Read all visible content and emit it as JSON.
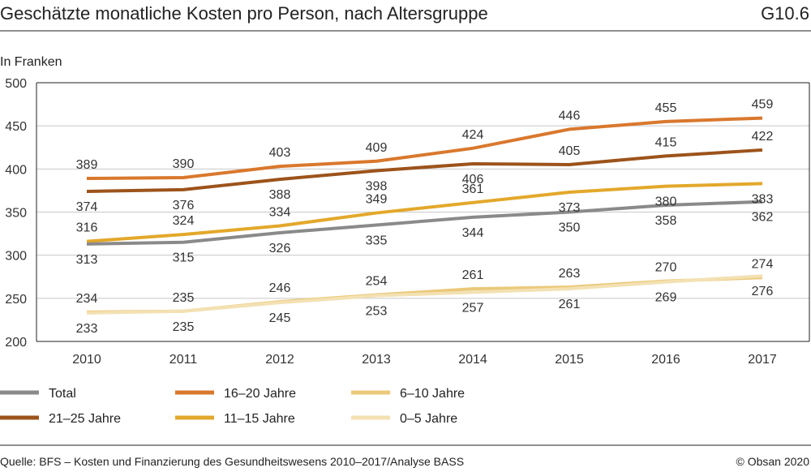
{
  "header": {
    "title": "Geschätzte monatliche Kosten pro Person, nach Altersgruppe",
    "code": "G10.6",
    "unit": "In Franken"
  },
  "footer": {
    "source": "Quelle: BFS – Kosten und Finanzierung des Gesundheitswesens 2010–2017/Analyse BASS",
    "copyright": "© Obsan 2020"
  },
  "chart_data": {
    "type": "line",
    "title": "Geschätzte monatliche Kosten pro Person, nach Altersgruppe",
    "ylabel": "In Franken",
    "xlabel": "",
    "x": [
      "2010",
      "2011",
      "2012",
      "2013",
      "2014",
      "2015",
      "2016",
      "2017"
    ],
    "ylim": [
      200,
      500
    ],
    "yticks": [
      200,
      250,
      300,
      350,
      400,
      450,
      500
    ],
    "grid": true,
    "series": [
      {
        "name": "16–20 Jahre",
        "color": "#d9782d",
        "values": [
          389,
          390,
          403,
          409,
          424,
          446,
          455,
          459
        ],
        "label_pos": [
          "above",
          "above",
          "above",
          "above",
          "above",
          "above",
          "above",
          "above"
        ]
      },
      {
        "name": "21–25 Jahre",
        "color": "#9c531b",
        "values": [
          374,
          376,
          388,
          398,
          406,
          405,
          415,
          422
        ],
        "label_pos": [
          "below",
          "below",
          "below",
          "below",
          "below",
          "above",
          "above",
          "above"
        ]
      },
      {
        "name": "11–15 Jahre",
        "color": "#e3a82b",
        "values": [
          316,
          324,
          334,
          349,
          361,
          373,
          380,
          383
        ],
        "label_pos": [
          "above",
          "above",
          "above",
          "above",
          "above",
          "below",
          "below",
          "below"
        ]
      },
      {
        "name": "Total",
        "color": "#8a8a8a",
        "values": [
          313,
          315,
          326,
          335,
          344,
          350,
          358,
          362
        ],
        "label_pos": [
          "below",
          "below",
          "below",
          "below",
          "below",
          "below",
          "below",
          "below"
        ]
      },
      {
        "name": "6–10 Jahre",
        "color": "#ebc97a",
        "values": [
          234,
          235,
          246,
          254,
          261,
          263,
          270,
          274
        ],
        "label_pos": [
          "above",
          "above",
          "above",
          "above",
          "above",
          "above",
          "above",
          "above"
        ]
      },
      {
        "name": "0–5 Jahre",
        "color": "#f3e1b3",
        "values": [
          233,
          235,
          245,
          253,
          257,
          261,
          269,
          276
        ],
        "label_pos": [
          "below",
          "below",
          "below",
          "below",
          "below",
          "below",
          "below",
          "below"
        ]
      }
    ],
    "legend": {
      "placement": "bottom",
      "rows": [
        [
          "Total",
          "16–20 Jahre",
          "6–10 Jahre"
        ],
        [
          "21–25 Jahre",
          "11–15 Jahre",
          "0–5 Jahre"
        ]
      ]
    }
  }
}
